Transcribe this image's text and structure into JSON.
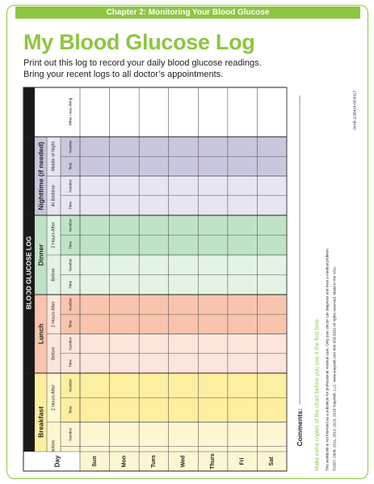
{
  "header": {
    "chapter": "Chapter 2: Monitoring Your Blood Glucose"
  },
  "title": "My Blood Glucose Log",
  "intro": [
    "Print out this log to record your daily blood glucose readings.",
    "Bring your recent logs to all doctor’s appointments."
  ],
  "log": {
    "banner": "BLOOD GLUCOSE LOG",
    "day_label": "Day",
    "days": [
      "Sun",
      "Mon",
      "Tues",
      "Wed",
      "Thurs",
      "Fri",
      "Sat"
    ],
    "col_time": "Time",
    "col_number": "Number",
    "what_col": "What I was doing",
    "comments": "Comments:",
    "meals": [
      {
        "name": "Breakfast",
        "subs": [
          "Before",
          "2 Hours After"
        ],
        "color_light": "#fdf6d2",
        "color_dark": "#fdeea0"
      },
      {
        "name": "Lunch",
        "subs": [
          "Before",
          "2 Hours After"
        ],
        "color_light": "#fde5db",
        "color_dark": "#f9c4ad"
      },
      {
        "name": "Dinner",
        "subs": [
          "Before",
          "2 Hours After"
        ],
        "color_light": "#e3f3e6",
        "color_dark": "#bfe3c6"
      },
      {
        "name": "Nighttime (if needed)",
        "subs": [
          "At Bedtime",
          "Middle of Night"
        ],
        "color_light": "#e6e5f1",
        "color_dark": "#c8c7dd"
      }
    ]
  },
  "footer": {
    "tip": "Make extra copies of the chart before you use it the first time.",
    "disclaimer": "This workbook is not intended as a substitute for professional medical care. Only your doctor can diagnose and treat a medical problem.",
    "copyright": "©2007, 2008, 2011, 2013, 2015, 2018 StayWell, LLC.  www.staywell.com  800-333-3032  All rights reserved. Made in the USA.",
    "code": "DIAB-1136414-00-0317"
  },
  "colors": {
    "accent": "#8dc63f",
    "banner": "#1a1a1a"
  }
}
